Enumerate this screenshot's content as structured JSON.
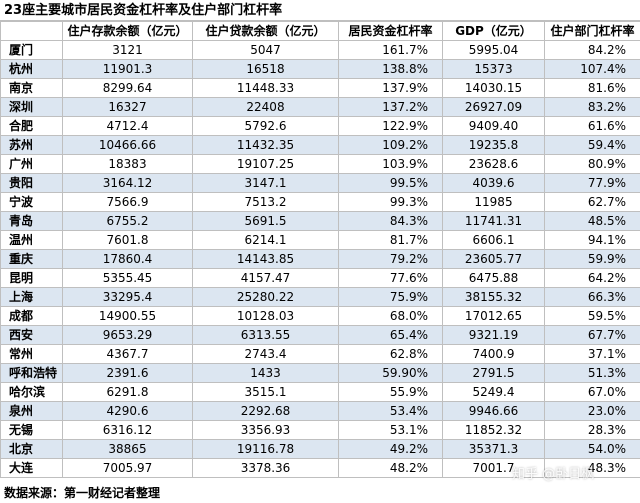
{
  "title": "23座主要城市居民资金杠杆率及住户部门杠杆率",
  "headers": [
    "",
    "住户存款余额（亿元）",
    "住户贷款余额（亿元）",
    "居民资金杠杆率",
    "GDP（亿元）",
    "住户部门杠杆率"
  ],
  "rows": [
    {
      "city": "厦门",
      "deposit": "3121",
      "loan": "5047",
      "fund_leverage": "161.7%",
      "gdp": "5995.04",
      "household_leverage": "84.2%"
    },
    {
      "city": "杭州",
      "deposit": "11901.3",
      "loan": "16518",
      "fund_leverage": "138.8%",
      "gdp": "15373",
      "household_leverage": "107.4%"
    },
    {
      "city": "南京",
      "deposit": "8299.64",
      "loan": "11448.33",
      "fund_leverage": "137.9%",
      "gdp": "14030.15",
      "household_leverage": "81.6%"
    },
    {
      "city": "深圳",
      "deposit": "16327",
      "loan": "22408",
      "fund_leverage": "137.2%",
      "gdp": "26927.09",
      "household_leverage": "83.2%"
    },
    {
      "city": "合肥",
      "deposit": "4712.4",
      "loan": "5792.6",
      "fund_leverage": "122.9%",
      "gdp": "9409.40",
      "household_leverage": "61.6%"
    },
    {
      "city": "苏州",
      "deposit": "10466.66",
      "loan": "11432.35",
      "fund_leverage": "109.2%",
      "gdp": "19235.8",
      "household_leverage": "59.4%"
    },
    {
      "city": "广州",
      "deposit": "18383",
      "loan": "19107.25",
      "fund_leverage": "103.9%",
      "gdp": "23628.6",
      "household_leverage": "80.9%"
    },
    {
      "city": "贵阳",
      "deposit": "3164.12",
      "loan": "3147.1",
      "fund_leverage": "99.5%",
      "gdp": "4039.6",
      "household_leverage": "77.9%"
    },
    {
      "city": "宁波",
      "deposit": "7566.9",
      "loan": "7513.2",
      "fund_leverage": "99.3%",
      "gdp": "11985",
      "household_leverage": "62.7%"
    },
    {
      "city": "青岛",
      "deposit": "6755.2",
      "loan": "5691.5",
      "fund_leverage": "84.3%",
      "gdp": "11741.31",
      "household_leverage": "48.5%"
    },
    {
      "city": "温州",
      "deposit": "7601.8",
      "loan": "6214.1",
      "fund_leverage": "81.7%",
      "gdp": "6606.1",
      "household_leverage": "94.1%"
    },
    {
      "city": "重庆",
      "deposit": "17860.4",
      "loan": "14143.85",
      "fund_leverage": "79.2%",
      "gdp": "23605.77",
      "household_leverage": "59.9%"
    },
    {
      "city": "昆明",
      "deposit": "5355.45",
      "loan": "4157.47",
      "fund_leverage": "77.6%",
      "gdp": "6475.88",
      "household_leverage": "64.2%"
    },
    {
      "city": "上海",
      "deposit": "33295.4",
      "loan": "25280.22",
      "fund_leverage": "75.9%",
      "gdp": "38155.32",
      "household_leverage": "66.3%"
    },
    {
      "city": "成都",
      "deposit": "14900.55",
      "loan": "10128.03",
      "fund_leverage": "68.0%",
      "gdp": "17012.65",
      "household_leverage": "59.5%"
    },
    {
      "city": "西安",
      "deposit": "9653.29",
      "loan": "6313.55",
      "fund_leverage": "65.4%",
      "gdp": "9321.19",
      "household_leverage": "67.7%"
    },
    {
      "city": "常州",
      "deposit": "4367.7",
      "loan": "2743.4",
      "fund_leverage": "62.8%",
      "gdp": "7400.9",
      "household_leverage": "37.1%"
    },
    {
      "city": "呼和浩特",
      "deposit": "2391.6",
      "loan": "1433",
      "fund_leverage": "59.90%",
      "gdp": "2791.5",
      "household_leverage": "51.3%"
    },
    {
      "city": "哈尔滨",
      "deposit": "6291.8",
      "loan": "3515.1",
      "fund_leverage": "55.9%",
      "gdp": "5249.4",
      "household_leverage": "67.0%"
    },
    {
      "city": "泉州",
      "deposit": "4290.6",
      "loan": "2292.68",
      "fund_leverage": "53.4%",
      "gdp": "9946.66",
      "household_leverage": "23.0%"
    },
    {
      "city": "无锡",
      "deposit": "6316.12",
      "loan": "3356.93",
      "fund_leverage": "53.1%",
      "gdp": "11852.32",
      "household_leverage": "28.3%"
    },
    {
      "city": "北京",
      "deposit": "38865",
      "loan": "19116.78",
      "fund_leverage": "49.2%",
      "gdp": "35371.3",
      "household_leverage": "54.0%"
    },
    {
      "city": "大连",
      "deposit": "7005.97",
      "loan": "3378.36",
      "fund_leverage": "48.2%",
      "gdp": "7001.7",
      "household_leverage": "48.3%"
    }
  ],
  "source": "数据来源：第一财经记者整理",
  "watermark": "知乎 @卧日枫",
  "colors": {
    "alt_row": "#dce6f1",
    "grid_line": "#bfbfbf"
  }
}
